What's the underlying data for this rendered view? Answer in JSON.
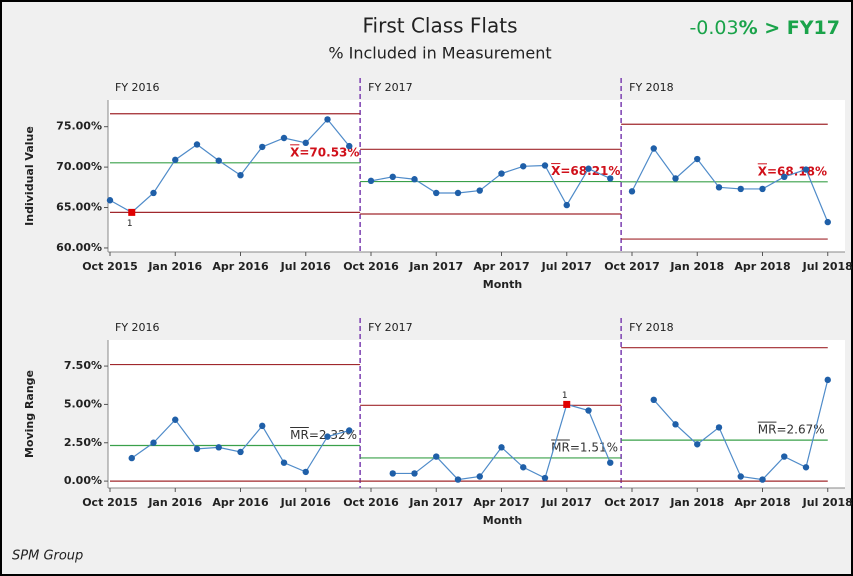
{
  "title": "First Class Flats",
  "subtitle": "% Included in Measurement",
  "annotation_parts": [
    "-0.03",
    "% > FY17"
  ],
  "footer": "SPM Group",
  "chart_data": [
    {
      "type": "control",
      "y_label": "Individual Value",
      "x_label": "Month",
      "categories": [
        "Oct 2015",
        null,
        null,
        "Jan 2016",
        null,
        null,
        "Apr 2016",
        null,
        null,
        "Jul 2016",
        null,
        null,
        "Oct 2016",
        null,
        null,
        "Jan 2017",
        null,
        null,
        "Apr 2017",
        null,
        null,
        "Jul 2017",
        null,
        null,
        "Oct 2017",
        null,
        null,
        "Jan 2018",
        null,
        null,
        "Apr 2018",
        null,
        null,
        "Jul 2018"
      ],
      "ylim": [
        59.5,
        78.3
      ],
      "yticks": [
        {
          "value": 60,
          "label": "60.00%"
        },
        {
          "value": 65,
          "label": "65.00%"
        },
        {
          "value": 70,
          "label": "70.00%"
        },
        {
          "value": 75,
          "label": "75.00%"
        }
      ],
      "color": "#1f5fa8",
      "flag_color": "#e00000",
      "center_label_color": "#d0101a",
      "stages": [
        {
          "label": "FY 2016",
          "values": [
            65.9,
            64.4,
            66.8,
            70.9,
            72.8,
            70.8,
            69.0,
            72.5,
            73.6,
            73.0,
            75.9,
            72.6
          ],
          "ucl": 76.6,
          "center": 70.53,
          "center_label": "X=70.53%",
          "lcl": 64.4,
          "flags": [
            {
              "index": 1,
              "label": "1"
            }
          ]
        },
        {
          "label": "FY 2017",
          "values": [
            68.3,
            68.8,
            68.5,
            66.8,
            66.8,
            67.1,
            69.2,
            70.1,
            70.2,
            65.3,
            69.8,
            68.6
          ],
          "ucl": 72.2,
          "center": 68.21,
          "center_label": "X=68.21%",
          "lcl": 64.2,
          "flags": []
        },
        {
          "label": "FY 2018",
          "values": [
            67.0,
            72.3,
            68.6,
            71.0,
            67.5,
            67.3,
            67.3,
            68.8,
            69.7,
            63.2
          ],
          "ucl": 75.3,
          "center": 68.18,
          "center_label": "X=68.18%",
          "lcl": 61.1,
          "flags": []
        }
      ]
    },
    {
      "type": "control",
      "y_label": "Moving Range",
      "x_label": "Month",
      "categories": [
        "Oct 2015",
        null,
        null,
        "Jan 2016",
        null,
        null,
        "Apr 2016",
        null,
        null,
        "Jul 2016",
        null,
        null,
        "Oct 2016",
        null,
        null,
        "Jan 2017",
        null,
        null,
        "Apr 2017",
        null,
        null,
        "Jul 2017",
        null,
        null,
        "Oct 2017",
        null,
        null,
        "Jan 2018",
        null,
        null,
        "Apr 2018",
        null,
        null,
        "Jul 2018"
      ],
      "ylim": [
        -0.45,
        9.2
      ],
      "yticks": [
        {
          "value": 0,
          "label": "0.00%"
        },
        {
          "value": 2.5,
          "label": "2.50%"
        },
        {
          "value": 5,
          "label": "5.00%"
        },
        {
          "value": 7.5,
          "label": "7.50%"
        }
      ],
      "color": "#1f5fa8",
      "flag_color": "#e00000",
      "center_label_color": "#333333",
      "stages": [
        {
          "label": "FY 2016",
          "values": [
            null,
            1.5,
            2.5,
            4.0,
            2.1,
            2.2,
            1.9,
            3.6,
            1.2,
            0.6,
            2.9,
            3.3
          ],
          "ucl": 7.6,
          "center": 2.32,
          "center_label": "MR=2.32%",
          "lcl": 0,
          "flags": []
        },
        {
          "label": "FY 2017",
          "values": [
            null,
            0.5,
            0.5,
            1.6,
            0.1,
            0.3,
            2.2,
            0.9,
            0.2,
            5.0,
            4.6,
            1.2
          ],
          "ucl": 4.94,
          "center": 1.51,
          "center_label": "MR=1.51%",
          "lcl": 0,
          "flags": [
            {
              "index": 9,
              "label": "1"
            }
          ]
        },
        {
          "label": "FY 2018",
          "values": [
            null,
            5.3,
            3.7,
            2.4,
            3.5,
            0.3,
            0.1,
            1.6,
            0.9,
            6.6
          ],
          "ucl": 8.7,
          "center": 2.67,
          "center_label": "MR=2.67%",
          "lcl": 0,
          "flags": []
        }
      ]
    }
  ]
}
